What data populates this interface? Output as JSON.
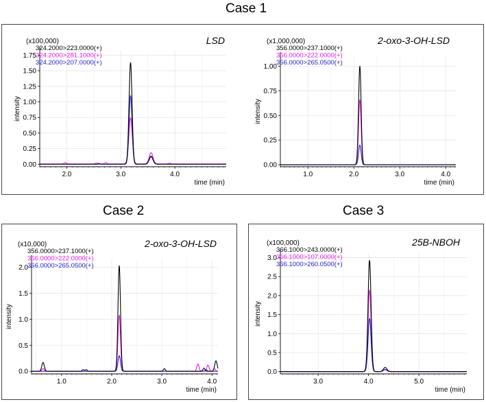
{
  "cases": [
    {
      "title": "Case 1"
    },
    {
      "title": "Case 2"
    },
    {
      "title": "Case 3"
    }
  ],
  "chart_data": [
    {
      "type": "line",
      "title": "LSD",
      "case": "Case 1",
      "scale": "(x100,000)",
      "xlabel": "time (min)",
      "ylabel": "intensity",
      "xlim": [
        1.5,
        4.95
      ],
      "ylim": [
        -0.04,
        1.82
      ],
      "xticks": [
        2.0,
        3.0,
        4.0
      ],
      "xtick_labels": [
        "2.0",
        "3.0",
        "4.0"
      ],
      "yticks": [
        0.0,
        0.25,
        0.5,
        0.75,
        1.0,
        1.25,
        1.5,
        1.75
      ],
      "ytick_labels": [
        "0.00",
        "0.25",
        "0.50",
        "0.75",
        "1.00",
        "1.25",
        "1.50",
        "1.75"
      ],
      "series": [
        {
          "name": "324.2000>223.0000(+)",
          "color": "#000000",
          "baseline": 0.0,
          "peaks": [
            {
              "t": 3.18,
              "h": 1.63,
              "w": 0.028
            },
            {
              "t": 3.56,
              "h": 0.12,
              "w": 0.035
            },
            {
              "t": 2.6,
              "h": 0.008,
              "w": 0.02
            }
          ]
        },
        {
          "name": "324.2000>281.1000(+)",
          "color": "#e81ce8",
          "baseline": 0.005,
          "peaks": [
            {
              "t": 3.18,
              "h": 0.74,
              "w": 0.032
            },
            {
              "t": 3.56,
              "h": 0.18,
              "w": 0.035
            },
            {
              "t": 1.97,
              "h": 0.02,
              "w": 0.02
            },
            {
              "t": 2.55,
              "h": 0.015,
              "w": 0.02
            },
            {
              "t": 2.72,
              "h": 0.02,
              "w": 0.02
            },
            {
              "t": 3.9,
              "h": 0.012,
              "w": 0.02
            }
          ]
        },
        {
          "name": "324.2000>207.0000(+)",
          "color": "#2222cc",
          "baseline": 0.0,
          "peaks": [
            {
              "t": 3.18,
              "h": 1.1,
              "w": 0.028
            },
            {
              "t": 3.56,
              "h": 0.13,
              "w": 0.035
            }
          ]
        }
      ]
    },
    {
      "type": "line",
      "title": "2-oxo-3-OH-LSD",
      "case": "Case 1",
      "scale": "(x1,000,000)",
      "xlabel": "time (min)",
      "ylabel": "intensity",
      "xlim": [
        0.4,
        4.22
      ],
      "ylim": [
        -0.02,
        1.1
      ],
      "xticks": [
        1.0,
        2.0,
        3.0,
        4.0
      ],
      "xtick_labels": [
        "1.0",
        "2.0",
        "3.0",
        "4.0"
      ],
      "yticks": [
        0.0,
        0.25,
        0.5,
        0.75,
        1.0
      ],
      "ytick_labels": [
        "0.00",
        "0.25",
        "0.50",
        "0.75",
        "1.00"
      ],
      "series": [
        {
          "name": "356.0000>237.1000(+)",
          "color": "#000000",
          "baseline": 0.0,
          "peaks": [
            {
              "t": 2.13,
              "h": 1.0,
              "w": 0.028
            }
          ]
        },
        {
          "name": "356.0000>222.0000(+)",
          "color": "#e81ce8",
          "baseline": 0.0,
          "peaks": [
            {
              "t": 2.13,
              "h": 0.66,
              "w": 0.028
            }
          ]
        },
        {
          "name": "356.0000>265.0500(+)",
          "color": "#2222cc",
          "baseline": 0.0,
          "peaks": [
            {
              "t": 2.13,
              "h": 0.2,
              "w": 0.028
            }
          ]
        }
      ]
    },
    {
      "type": "line",
      "title": "2-oxo-3-OH-LSD",
      "case": "Case 2",
      "scale": "(x10,000)",
      "xlabel": "time (min)",
      "ylabel": "intensity",
      "xlim": [
        0.4,
        4.12
      ],
      "ylim": [
        -0.05,
        2.15
      ],
      "xticks": [
        1.0,
        2.0,
        3.0,
        4.0
      ],
      "xtick_labels": [
        "1.0",
        "2.0",
        "3.0",
        "4.0"
      ],
      "yticks": [
        0.0,
        0.5,
        1.0,
        1.5,
        2.0
      ],
      "ytick_labels": [
        "0.0",
        "0.5",
        "1.0",
        "1.5",
        "2.0"
      ],
      "series": [
        {
          "name": "356.0000>237.1000(+)",
          "color": "#000000",
          "baseline": 0.0,
          "peaks": [
            {
              "t": 2.15,
              "h": 2.03,
              "w": 0.025
            },
            {
              "t": 0.63,
              "h": 0.17,
              "w": 0.025
            },
            {
              "t": 1.43,
              "h": 0.03,
              "w": 0.02
            },
            {
              "t": 1.49,
              "h": 0.03,
              "w": 0.02
            },
            {
              "t": 3.05,
              "h": 0.05,
              "w": 0.02
            },
            {
              "t": 3.84,
              "h": 0.06,
              "w": 0.02
            },
            {
              "t": 4.08,
              "h": 0.2,
              "w": 0.025
            }
          ]
        },
        {
          "name": "356.0000>222.0000(+)",
          "color": "#e81ce8",
          "baseline": 0.0,
          "peaks": [
            {
              "t": 2.15,
              "h": 1.08,
              "w": 0.025
            },
            {
              "t": 0.63,
              "h": 0.05,
              "w": 0.025
            },
            {
              "t": 3.72,
              "h": 0.14,
              "w": 0.022
            },
            {
              "t": 3.92,
              "h": 0.12,
              "w": 0.022
            },
            {
              "t": 4.05,
              "h": 0.05,
              "w": 0.02
            }
          ]
        },
        {
          "name": "356.0000>265.0500(+)",
          "color": "#2222cc",
          "baseline": 0.0,
          "peaks": [
            {
              "t": 2.15,
              "h": 0.3,
              "w": 0.025
            },
            {
              "t": 3.88,
              "h": 0.03,
              "w": 0.02
            }
          ]
        }
      ]
    },
    {
      "type": "line",
      "title": "25B-NBOH",
      "case": "Case 3",
      "scale": "(x100,000)",
      "xlabel": "time (min)",
      "ylabel": "intensity",
      "xlim": [
        2.25,
        5.95
      ],
      "ylim": [
        -0.06,
        3.1
      ],
      "xticks": [
        3.0,
        4.0,
        5.0
      ],
      "xtick_labels": [
        "3.0",
        "4.0",
        "5.0"
      ],
      "yticks": [
        0.0,
        0.5,
        1.0,
        1.5,
        2.0,
        2.5,
        3.0
      ],
      "ytick_labels": [
        "0.0",
        "0.5",
        "1.0",
        "1.5",
        "2.0",
        "2.5",
        "3.0"
      ],
      "series": [
        {
          "name": "366.1000>243.0000(+)",
          "color": "#000000",
          "baseline": 0.0,
          "peaks": [
            {
              "t": 4.02,
              "h": 2.93,
              "w": 0.03
            },
            {
              "t": 4.33,
              "h": 0.11,
              "w": 0.035
            }
          ]
        },
        {
          "name": "366.1000>107.0000(+)",
          "color": "#e81ce8",
          "baseline": 0.0,
          "peaks": [
            {
              "t": 4.02,
              "h": 2.15,
              "w": 0.03
            },
            {
              "t": 4.33,
              "h": 0.06,
              "w": 0.035
            }
          ]
        },
        {
          "name": "366.1000>260.0500(+)",
          "color": "#2222cc",
          "baseline": 0.0,
          "peaks": [
            {
              "t": 4.02,
              "h": 1.4,
              "w": 0.03
            },
            {
              "t": 4.33,
              "h": 0.05,
              "w": 0.035
            }
          ]
        }
      ]
    }
  ]
}
